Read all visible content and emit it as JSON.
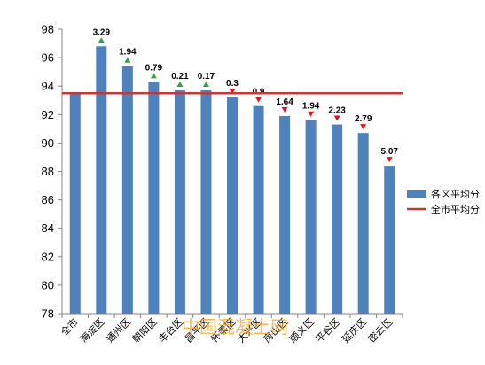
{
  "chart_data": {
    "type": "bar",
    "categories": [
      "全市",
      "海淀区",
      "通州区",
      "朝阳区",
      "丰台区",
      "昌平区",
      "怀柔区",
      "大兴区",
      "房山区",
      "顺义区",
      "平谷区",
      "延庆区",
      "密云区"
    ],
    "series": [
      {
        "name": "各区平均分",
        "values": [
          93.5,
          96.8,
          95.4,
          94.3,
          93.7,
          93.7,
          93.2,
          92.6,
          91.9,
          91.6,
          91.3,
          90.7,
          88.4
        ],
        "diff_labels": [
          "",
          "3.29",
          "1.94",
          "0.79",
          "0.21",
          "0.17",
          "0.3",
          "0.9",
          "1.64",
          "1.94",
          "2.23",
          "2.79",
          "5.07"
        ],
        "diff_direction": [
          "none",
          "up",
          "up",
          "up",
          "up",
          "up",
          "down",
          "down",
          "down",
          "down",
          "down",
          "down",
          "down"
        ],
        "color": "#4f81bd"
      },
      {
        "name": "全市平均分",
        "type": "line",
        "value": 93.5,
        "color": "#c0393b"
      }
    ],
    "up_color": "#2ea04a",
    "down_color": "#e0141e",
    "ylim": [
      78,
      98
    ],
    "yticks": [
      78,
      80,
      82,
      84,
      86,
      88,
      90,
      92,
      94,
      96,
      98
    ],
    "legend_position": "right",
    "grid": false
  },
  "watermark": "中国混凝土网"
}
